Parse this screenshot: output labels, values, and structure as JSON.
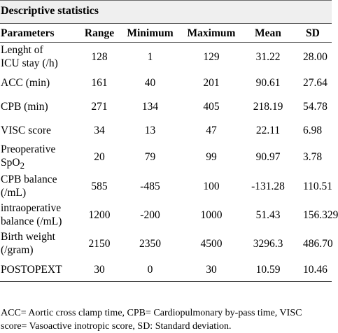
{
  "title": "Descriptive statistics",
  "headers": [
    "Parameters",
    "Range",
    "Minimum",
    "Maximum",
    "Mean",
    "SD"
  ],
  "rows": [
    {
      "param_line1": "Lenght of",
      "param_line2": "ICU stay (/h)",
      "range": "128",
      "minimum": "1",
      "maximum": "129",
      "mean": "31.22",
      "sd": "28.00"
    },
    {
      "param_line1": "ACC (min)",
      "param_line2": "",
      "range": "161",
      "minimum": "40",
      "maximum": "201",
      "mean": "90.61",
      "sd": "27.64"
    },
    {
      "param_line1": "CPB (min)",
      "param_line2": "",
      "range": "271",
      "minimum": "134",
      "maximum": "405",
      "mean": "218.19",
      "sd": "54.78"
    },
    {
      "param_line1": "VISC score",
      "param_line2": "",
      "range": "34",
      "minimum": "13",
      "maximum": "47",
      "mean": "22.11",
      "sd": "6.98"
    },
    {
      "param_line1": "Preoperative",
      "param_line2": "SpO",
      "param_sub": "2",
      "range": "20",
      "minimum": "79",
      "maximum": "99",
      "mean": "90.97",
      "sd": "3.78"
    },
    {
      "param_line1": "CPB balance",
      "param_line2": "(/mL)",
      "range": "585",
      "minimum": "-485",
      "maximum": "100",
      "mean": "-131.28",
      "sd": "110.51"
    },
    {
      "param_line1": "intraoperative",
      "param_line2": "balance (/mL)",
      "range": "1200",
      "minimum": "-200",
      "maximum": "1000",
      "mean": "51.43",
      "sd": "156.329"
    },
    {
      "param_line1": "Birth weight",
      "param_line2": "(/gram)",
      "range": "2150",
      "minimum": "2350",
      "maximum": "4500",
      "mean": "3296.3",
      "sd": "486.70"
    },
    {
      "param_line1": "POSTOPEXT",
      "param_line2": "",
      "range": "30",
      "minimum": "0",
      "maximum": "30",
      "mean": "10.59",
      "sd": "10.46"
    }
  ],
  "footnote_line1": "ACC= Aortic cross clamp time, CPB= Cardiopulmonary by-pass time, VISC",
  "footnote_line2": "score= Vasoactive inotropic score, SD: Standard deviation."
}
